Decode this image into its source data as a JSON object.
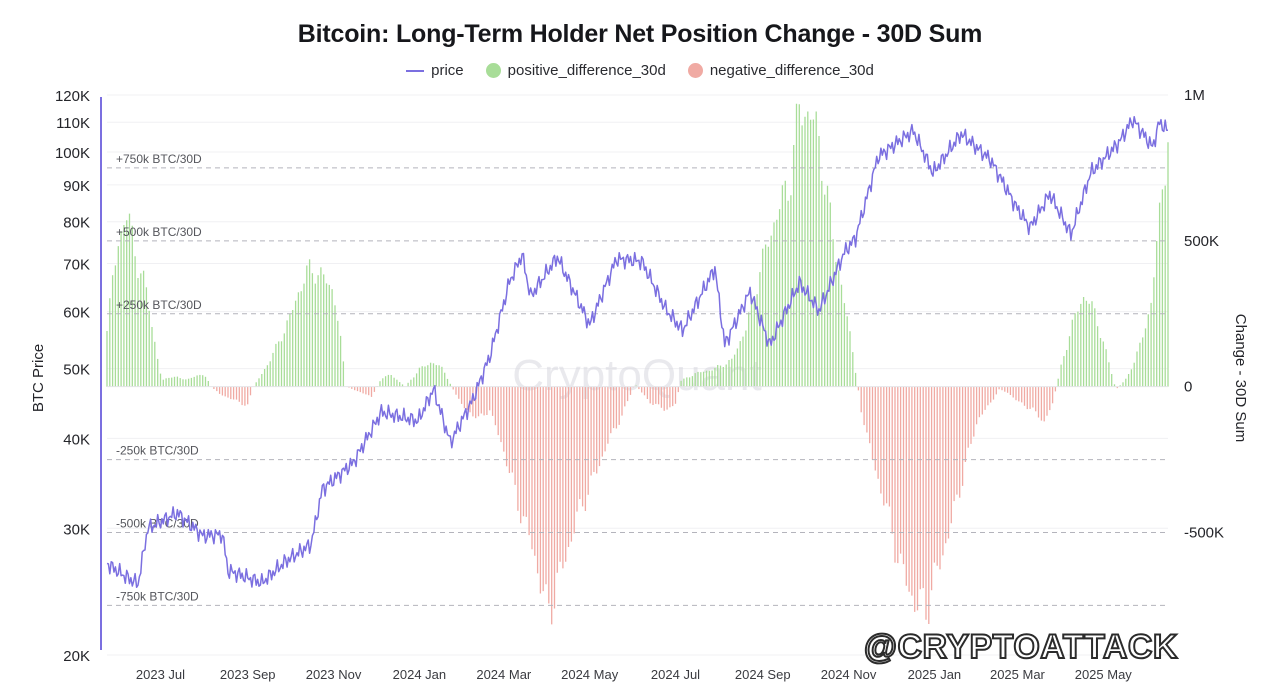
{
  "chart_data": {
    "type": "bar+line",
    "title": "Bitcoin: Long-Term Holder Net Position Change - 30D Sum",
    "legend": [
      "price",
      "positive_difference_30d",
      "negative_difference_30d"
    ],
    "legend_placement": "top-center",
    "ylabel_left": "BTC Price",
    "ylabel_right": "Change - 30D Sum",
    "y_left_scale": "log",
    "y_left_range": [
      20000,
      120000
    ],
    "y_left_ticks": [
      "120K",
      "110K",
      "100K",
      "90K",
      "80K",
      "70K",
      "60K",
      "50K",
      "40K",
      "30K",
      "20K"
    ],
    "y_right_range": [
      -920000,
      1000000
    ],
    "y_right_ticks": [
      "1M",
      "500K",
      "0",
      "-500K"
    ],
    "x_ticks": [
      "2023 Jul",
      "2023 Sep",
      "2023 Nov",
      "2024 Jan",
      "2024 Mar",
      "2024 May",
      "2024 Jul",
      "2024 Sep",
      "2024 Nov",
      "2025 Jan",
      "2025 Mar",
      "2025 May"
    ],
    "x_range": [
      "2023-05-24",
      "2025-06-16"
    ],
    "reference_lines": [
      "+750k BTC/30D",
      "+500k BTC/30D",
      "+250k BTC/30D",
      "-250k BTC/30D",
      "-500k BTC/30D",
      "-750k BTC/30D"
    ],
    "watermark": "CryptoQuant",
    "grid": true,
    "colors": {
      "price": "#7b6fe0",
      "positive": "#a8dd98",
      "negative": "#f0aaa3",
      "reference": "#b4b4bc"
    },
    "price_series": [
      [
        "2023-05-24",
        26800
      ],
      [
        "2023-06-05",
        25800
      ],
      [
        "2023-06-15",
        25100
      ],
      [
        "2023-06-22",
        30000
      ],
      [
        "2023-07-13",
        31500
      ],
      [
        "2023-07-31",
        29300
      ],
      [
        "2023-08-14",
        29400
      ],
      [
        "2023-08-18",
        26200
      ],
      [
        "2023-09-11",
        25200
      ],
      [
        "2023-09-28",
        27000
      ],
      [
        "2023-10-16",
        28500
      ],
      [
        "2023-10-24",
        34000
      ],
      [
        "2023-11-15",
        37000
      ],
      [
        "2023-12-05",
        43500
      ],
      [
        "2023-12-31",
        42300
      ],
      [
        "2024-01-11",
        46800
      ],
      [
        "2024-01-23",
        39500
      ],
      [
        "2024-02-08",
        45300
      ],
      [
        "2024-02-20",
        52000
      ],
      [
        "2024-03-05",
        66000
      ],
      [
        "2024-03-14",
        72000
      ],
      [
        "2024-03-20",
        63000
      ],
      [
        "2024-04-08",
        71500
      ],
      [
        "2024-05-01",
        57500
      ],
      [
        "2024-05-20",
        71000
      ],
      [
        "2024-06-07",
        70500
      ],
      [
        "2024-06-24",
        60500
      ],
      [
        "2024-07-06",
        56500
      ],
      [
        "2024-07-29",
        69000
      ],
      [
        "2024-08-05",
        54000
      ],
      [
        "2024-08-23",
        64000
      ],
      [
        "2024-09-06",
        53900
      ],
      [
        "2024-09-27",
        65800
      ],
      [
        "2024-10-11",
        60200
      ],
      [
        "2024-10-29",
        72500
      ],
      [
        "2024-11-06",
        76000
      ],
      [
        "2024-11-22",
        98500
      ],
      [
        "2024-12-17",
        107000
      ],
      [
        "2024-12-31",
        93500
      ],
      [
        "2025-01-20",
        106000
      ],
      [
        "2025-02-10",
        97500
      ],
      [
        "2025-02-28",
        84000
      ],
      [
        "2025-03-10",
        78500
      ],
      [
        "2025-03-24",
        87500
      ],
      [
        "2025-04-08",
        76800
      ],
      [
        "2025-04-22",
        93500
      ],
      [
        "2025-05-12",
        103000
      ],
      [
        "2025-05-22",
        111000
      ],
      [
        "2025-06-05",
        101500
      ],
      [
        "2025-06-10",
        110000
      ],
      [
        "2025-06-16",
        107000
      ]
    ],
    "net_position_change_series": [
      [
        "2023-05-24",
        200000
      ],
      [
        "2023-06-01",
        510000
      ],
      [
        "2023-06-08",
        590000
      ],
      [
        "2023-06-15",
        420000
      ],
      [
        "2023-06-22",
        310000
      ],
      [
        "2023-06-28",
        120000
      ],
      [
        "2023-07-02",
        20000
      ],
      [
        "2023-07-08",
        35000
      ],
      [
        "2023-07-20",
        25000
      ],
      [
        "2023-08-01",
        45000
      ],
      [
        "2023-08-06",
        0
      ],
      [
        "2023-08-12",
        -25000
      ],
      [
        "2023-08-22",
        -45000
      ],
      [
        "2023-09-01",
        -65000
      ],
      [
        "2023-09-05",
        0
      ],
      [
        "2023-09-12",
        50000
      ],
      [
        "2023-09-22",
        140000
      ],
      [
        "2023-10-02",
        250000
      ],
      [
        "2023-10-12",
        390000
      ],
      [
        "2023-10-20",
        400000
      ],
      [
        "2023-11-01",
        330000
      ],
      [
        "2023-11-05",
        200000
      ],
      [
        "2023-11-10",
        0
      ],
      [
        "2023-11-18",
        -15000
      ],
      [
        "2023-11-28",
        -35000
      ],
      [
        "2023-12-05",
        30000
      ],
      [
        "2023-12-12",
        40000
      ],
      [
        "2023-12-22",
        0
      ],
      [
        "2024-01-01",
        60000
      ],
      [
        "2024-01-10",
        85000
      ],
      [
        "2024-01-18",
        60000
      ],
      [
        "2024-01-24",
        0
      ],
      [
        "2024-02-01",
        -70000
      ],
      [
        "2024-02-12",
        -110000
      ],
      [
        "2024-02-20",
        -80000
      ],
      [
        "2024-03-01",
        -220000
      ],
      [
        "2024-03-10",
        -380000
      ],
      [
        "2024-03-22",
        -560000
      ],
      [
        "2024-04-01",
        -780000
      ],
      [
        "2024-04-10",
        -650000
      ],
      [
        "2024-04-22",
        -450000
      ],
      [
        "2024-05-05",
        -300000
      ],
      [
        "2024-05-15",
        -180000
      ],
      [
        "2024-05-24",
        -100000
      ],
      [
        "2024-06-02",
        10000
      ],
      [
        "2024-06-12",
        -50000
      ],
      [
        "2024-06-24",
        -80000
      ],
      [
        "2024-07-01",
        -60000
      ],
      [
        "2024-07-05",
        20000
      ],
      [
        "2024-07-15",
        45000
      ],
      [
        "2024-07-28",
        60000
      ],
      [
        "2024-08-10",
        90000
      ],
      [
        "2024-08-20",
        200000
      ],
      [
        "2024-08-30",
        400000
      ],
      [
        "2024-09-10",
        580000
      ],
      [
        "2024-09-20",
        700000
      ],
      [
        "2024-09-27",
        950000
      ],
      [
        "2024-10-05",
        940000
      ],
      [
        "2024-10-12",
        820000
      ],
      [
        "2024-10-20",
        540000
      ],
      [
        "2024-10-28",
        320000
      ],
      [
        "2024-11-04",
        120000
      ],
      [
        "2024-11-10",
        -80000
      ],
      [
        "2024-11-18",
        -250000
      ],
      [
        "2024-11-28",
        -420000
      ],
      [
        "2024-12-08",
        -620000
      ],
      [
        "2024-12-18",
        -740000
      ],
      [
        "2024-12-26",
        -760000
      ],
      [
        "2025-01-04",
        -620000
      ],
      [
        "2025-01-14",
        -450000
      ],
      [
        "2025-01-24",
        -250000
      ],
      [
        "2025-02-01",
        -110000
      ],
      [
        "2025-02-08",
        -70000
      ],
      [
        "2025-02-16",
        -10000
      ],
      [
        "2025-02-22",
        -20000
      ],
      [
        "2025-03-01",
        -50000
      ],
      [
        "2025-03-12",
        -80000
      ],
      [
        "2025-03-20",
        -120000
      ],
      [
        "2025-03-26",
        -60000
      ],
      [
        "2025-04-02",
        90000
      ],
      [
        "2025-04-10",
        230000
      ],
      [
        "2025-04-18",
        320000
      ],
      [
        "2025-04-26",
        240000
      ],
      [
        "2025-05-04",
        100000
      ],
      [
        "2025-05-10",
        -10000
      ],
      [
        "2025-05-18",
        30000
      ],
      [
        "2025-05-28",
        150000
      ],
      [
        "2025-06-04",
        290000
      ],
      [
        "2025-06-10",
        580000
      ],
      [
        "2025-06-16",
        880000
      ]
    ]
  },
  "overlay": {
    "credit": "@CRYPTOATTACK"
  }
}
